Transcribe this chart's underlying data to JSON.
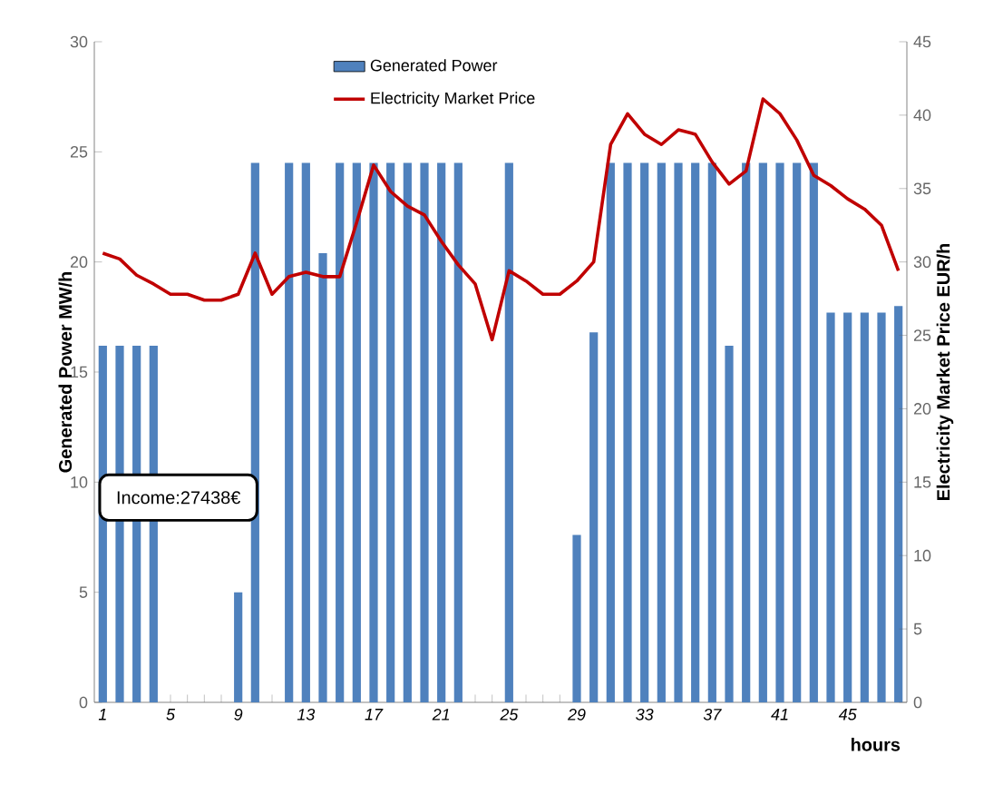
{
  "chart_data": {
    "type": "bar",
    "categories": [
      "1",
      null,
      null,
      null,
      "5",
      null,
      null,
      null,
      "9",
      null,
      null,
      null,
      "13",
      null,
      null,
      null,
      "17",
      null,
      null,
      null,
      "21",
      null,
      null,
      null,
      "25",
      null,
      null,
      null,
      "29",
      null,
      null,
      null,
      "33",
      null,
      null,
      null,
      "37",
      null,
      null,
      null,
      "41",
      null,
      null,
      null,
      "45",
      null,
      null,
      null
    ],
    "series": [
      {
        "name": "Generated Power",
        "color": "#4f81bd",
        "values": [
          16.2,
          16.2,
          16.2,
          16.2,
          0,
          0,
          0,
          0,
          5,
          24.5,
          0,
          24.5,
          24.5,
          20.4,
          24.5,
          24.5,
          24.5,
          24.5,
          24.5,
          24.5,
          24.5,
          24.5,
          0,
          0,
          24.5,
          0,
          0,
          0,
          7.6,
          16.8,
          24.5,
          24.5,
          24.5,
          24.5,
          24.5,
          24.5,
          24.5,
          16.2,
          24.5,
          24.5,
          24.5,
          24.5,
          24.5,
          17.7,
          17.7,
          17.7,
          17.7,
          18.0
        ]
      },
      {
        "name": "Electricity Market Price",
        "type": "line",
        "axis": "y2",
        "color": "#c00000",
        "values": [
          30.6,
          30.2,
          29.1,
          28.5,
          27.8,
          27.8,
          27.4,
          27.4,
          27.8,
          30.6,
          27.8,
          29.0,
          29.3,
          29.0,
          29.0,
          32.7,
          36.6,
          34.8,
          33.8,
          33.2,
          31.4,
          29.8,
          28.5,
          24.7,
          29.4,
          28.7,
          27.8,
          27.8,
          28.7,
          30.0,
          38.0,
          40.1,
          38.7,
          38.0,
          39.0,
          38.7,
          36.8,
          35.3,
          36.2,
          41.1,
          40.1,
          38.3,
          35.9,
          35.2,
          34.3,
          33.6,
          32.5,
          29.4
        ]
      }
    ],
    "xlabel": "hours",
    "ylabel": "Generated Power MW/h",
    "y2label": "Electricity Market Price EUR/h",
    "ylim": [
      0,
      30
    ],
    "yticks": [
      0,
      5,
      10,
      15,
      20,
      25,
      30
    ],
    "y2lim": [
      0,
      45
    ],
    "y2ticks": [
      0,
      5,
      10,
      15,
      20,
      25,
      30,
      35,
      40,
      45
    ],
    "legend": "top",
    "annotations": [
      "Income:27438€"
    ]
  }
}
